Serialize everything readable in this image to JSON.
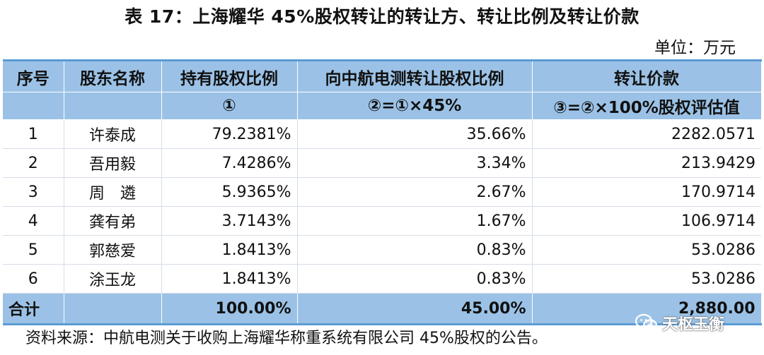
{
  "title": "表  17：上海耀华 45%股权转让的转让方、转让比例及转让价款",
  "unit": "单位：万元",
  "table": {
    "header1": [
      "序号",
      "股东名称",
      "持有股权比例",
      "向中航电测转让股权比例",
      "转让价款"
    ],
    "header2": [
      "",
      "",
      "①",
      "②=①×45%",
      "③=②×100%股权评估值"
    ],
    "rows": [
      [
        "1",
        "许泰成",
        "79.2381%",
        "35.66%",
        "2282.0571"
      ],
      [
        "2",
        "吾用毅",
        "7.4286%",
        "3.34%",
        "213.9429"
      ],
      [
        "3",
        "周　遴",
        "5.9365%",
        "2.67%",
        "170.9714"
      ],
      [
        "4",
        "龚有弟",
        "3.7143%",
        "1.67%",
        "106.9714"
      ],
      [
        "5",
        "郭慈爱",
        "1.8413%",
        "0.83%",
        "53.0286"
      ],
      [
        "6",
        "涂玉龙",
        "1.8413%",
        "0.83%",
        "53.0286"
      ]
    ],
    "total": [
      "合计",
      "",
      "100.00%",
      "45.00%",
      "2,880.00"
    ]
  },
  "source": "资料来源：中航电测关于收购上海耀华称重系统有限公司 45%股权的公告。",
  "watermark": "天枢玉衡",
  "colors": {
    "header_bg": "#9bc2e6",
    "rule": "#5b9bd5",
    "grid": "#d6dde8"
  }
}
